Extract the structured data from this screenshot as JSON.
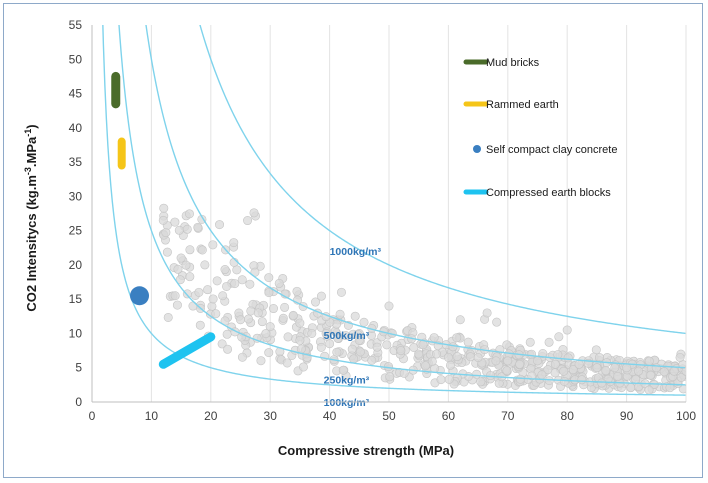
{
  "chart_data": {
    "type": "scatter",
    "xlabel": "Compressive strength (MPa)",
    "ylabel_main": "CO2  Intensitycs (kg.m",
    "ylabel_sup1": "-3",
    "ylabel_mid": ".MPa",
    "ylabel_sup2": "-1",
    "ylabel_end": ")",
    "xlim": [
      0,
      100
    ],
    "ylim": [
      0,
      55
    ],
    "xticks": [
      "0",
      "10",
      "20",
      "30",
      "40",
      "50",
      "60",
      "70",
      "80",
      "90",
      "100"
    ],
    "yticks": [
      "0",
      "5",
      "10",
      "15",
      "20",
      "25",
      "30",
      "35",
      "40",
      "45",
      "50",
      "55"
    ],
    "grid": "vertical",
    "legend_position": "top-right",
    "colors": {
      "mud": "#4a6b2a",
      "rammed": "#f5c518",
      "scc": "#3a7fc1",
      "ceb": "#1ec3f0",
      "curve": "#7fd3ec",
      "cloud": "#d9d9d9",
      "curve_label": "#2e75b6"
    },
    "series": [
      {
        "name": "Mud bricks",
        "kind": "bar-segment",
        "x": [
          4,
          4
        ],
        "y": [
          43.5,
          47.5
        ]
      },
      {
        "name": "Rammed earth",
        "kind": "bar-segment",
        "x": [
          5,
          5
        ],
        "y": [
          34.5,
          38
        ]
      },
      {
        "name": "Self compact clay concrete",
        "kind": "point",
        "x": [
          8
        ],
        "y": [
          15.5
        ]
      },
      {
        "name": "Compressed earth blocks",
        "kind": "bar-segment",
        "x": [
          12,
          20
        ],
        "y": [
          5.5,
          9.5
        ]
      }
    ],
    "density_curves": [
      {
        "label": "1000kg/m³",
        "density": 1000,
        "label_x": 40,
        "label_y": 22
      },
      {
        "label": "500kg/m³",
        "density": 500,
        "label_x": 39,
        "label_y": 9.8
      },
      {
        "label": "250kg/m³",
        "density": 250,
        "label_x": 39,
        "label_y": 3.3
      },
      {
        "label": "100kg/m³",
        "density": 100,
        "label_x": 39,
        "label_y": 0
      }
    ],
    "curve_equation": "y = density / x",
    "cloud_description_points_estimate": [
      [
        12,
        26.5
      ],
      [
        14,
        15.5
      ],
      [
        15,
        21
      ],
      [
        17,
        14
      ],
      [
        18,
        16
      ],
      [
        19,
        20
      ],
      [
        22,
        15.5
      ],
      [
        25,
        12
      ],
      [
        28,
        13
      ],
      [
        30,
        11
      ],
      [
        33,
        9.5
      ],
      [
        35,
        9
      ],
      [
        37,
        10
      ],
      [
        40,
        8.5
      ],
      [
        42,
        16
      ],
      [
        45,
        9
      ],
      [
        48,
        8
      ],
      [
        50,
        14
      ],
      [
        52,
        7.5
      ],
      [
        55,
        7
      ],
      [
        58,
        7
      ],
      [
        60,
        6.5
      ],
      [
        62,
        12
      ],
      [
        65,
        6.5
      ],
      [
        68,
        6
      ],
      [
        70,
        6
      ],
      [
        72,
        5.5
      ],
      [
        75,
        6
      ],
      [
        78,
        5.5
      ],
      [
        80,
        10.5
      ],
      [
        82,
        5.5
      ],
      [
        85,
        5
      ],
      [
        88,
        5
      ],
      [
        90,
        5
      ],
      [
        92,
        4.5
      ],
      [
        95,
        5
      ],
      [
        98,
        4.5
      ],
      [
        99,
        6.5
      ],
      [
        100,
        4.5
      ]
    ]
  }
}
